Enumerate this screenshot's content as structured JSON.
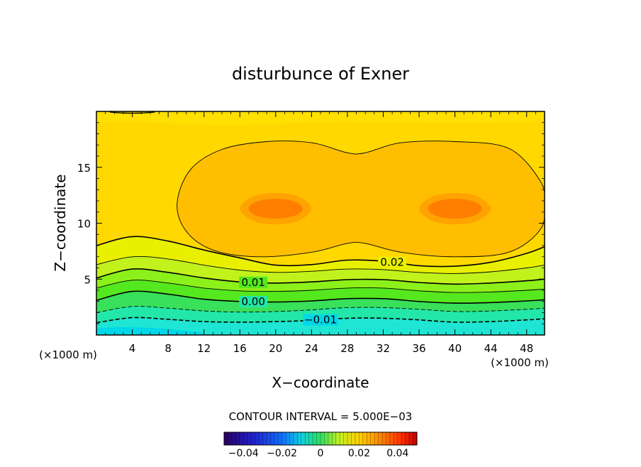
{
  "chart_data": {
    "type": "contour",
    "title": "disturbunce of Exner",
    "xlabel": "X−coordinate",
    "ylabel": "Z−coordinate",
    "x_unit": "(×1000 m)",
    "y_unit": "(×1000 m)",
    "xlim": [
      0,
      50
    ],
    "ylim": [
      0,
      20
    ],
    "x_ticks": [
      4,
      8,
      12,
      16,
      20,
      24,
      28,
      32,
      36,
      40,
      44,
      48
    ],
    "y_ticks": [
      5,
      10,
      15
    ],
    "contour_interval_text": "CONTOUR INTERVAL = 5.000E−03",
    "contour_interval": 0.005,
    "fill_levels": [
      -0.015,
      -0.01,
      -0.005,
      0.0,
      0.005,
      0.01,
      0.015,
      0.02,
      0.025,
      0.03
    ],
    "field_peak_max": {
      "value": 0.03,
      "locations": [
        [
          20,
          11.3
        ],
        [
          40,
          11.3
        ]
      ]
    },
    "field_min": {
      "value": -0.015,
      "location": [
        4,
        0.2
      ]
    },
    "contour_lines": [
      {
        "level": -0.01,
        "label": "−0.01",
        "label_x": 25,
        "points": [
          [
            0,
            1.1
          ],
          [
            4,
            1.55
          ],
          [
            8,
            1.4
          ],
          [
            12,
            1.2
          ],
          [
            16,
            1.15
          ],
          [
            20,
            1.2
          ],
          [
            24,
            1.3
          ],
          [
            28,
            1.5
          ],
          [
            32,
            1.5
          ],
          [
            36,
            1.35
          ],
          [
            40,
            1.15
          ],
          [
            44,
            1.2
          ],
          [
            48,
            1.35
          ],
          [
            50,
            1.45
          ]
        ]
      },
      {
        "level": -0.005,
        "label": "",
        "points": [
          [
            0,
            2.0
          ],
          [
            4,
            2.55
          ],
          [
            8,
            2.4
          ],
          [
            12,
            2.15
          ],
          [
            16,
            2.05
          ],
          [
            20,
            2.1
          ],
          [
            24,
            2.25
          ],
          [
            28,
            2.45
          ],
          [
            32,
            2.45
          ],
          [
            36,
            2.3
          ],
          [
            40,
            2.1
          ],
          [
            44,
            2.15
          ],
          [
            48,
            2.3
          ],
          [
            50,
            2.4
          ]
        ]
      },
      {
        "level": 0.0,
        "label": "0.00",
        "label_x": 17.5,
        "points": [
          [
            0,
            3.1
          ],
          [
            4,
            3.9
          ],
          [
            8,
            3.65
          ],
          [
            12,
            3.2
          ],
          [
            16,
            3.0
          ],
          [
            20,
            2.95
          ],
          [
            24,
            3.05
          ],
          [
            28,
            3.25
          ],
          [
            32,
            3.25
          ],
          [
            36,
            3.0
          ],
          [
            40,
            2.85
          ],
          [
            44,
            2.9
          ],
          [
            48,
            3.05
          ],
          [
            50,
            3.15
          ]
        ]
      },
      {
        "level": 0.005,
        "label": "",
        "points": [
          [
            0,
            4.2
          ],
          [
            4,
            4.9
          ],
          [
            8,
            4.65
          ],
          [
            12,
            4.2
          ],
          [
            16,
            3.95
          ],
          [
            20,
            3.9
          ],
          [
            24,
            4.0
          ],
          [
            28,
            4.2
          ],
          [
            32,
            4.2
          ],
          [
            36,
            3.95
          ],
          [
            40,
            3.8
          ],
          [
            44,
            3.85
          ],
          [
            48,
            4.0
          ],
          [
            50,
            4.1
          ]
        ]
      },
      {
        "level": 0.01,
        "label": "0.01",
        "label_x": 17.5,
        "points": [
          [
            0,
            5.1
          ],
          [
            4,
            5.9
          ],
          [
            8,
            5.6
          ],
          [
            12,
            5.1
          ],
          [
            16,
            4.75
          ],
          [
            20,
            4.65
          ],
          [
            24,
            4.75
          ],
          [
            28,
            4.95
          ],
          [
            32,
            4.95
          ],
          [
            36,
            4.7
          ],
          [
            40,
            4.55
          ],
          [
            44,
            4.65
          ],
          [
            48,
            4.85
          ],
          [
            50,
            5.0
          ]
        ]
      },
      {
        "level": 0.015,
        "label": "",
        "points": [
          [
            0,
            6.3
          ],
          [
            4,
            7.0
          ],
          [
            8,
            6.8
          ],
          [
            12,
            6.25
          ],
          [
            16,
            5.8
          ],
          [
            20,
            5.6
          ],
          [
            24,
            5.7
          ],
          [
            28,
            5.9
          ],
          [
            32,
            5.85
          ],
          [
            36,
            5.6
          ],
          [
            40,
            5.5
          ],
          [
            44,
            5.65
          ],
          [
            48,
            6.0
          ],
          [
            50,
            6.25
          ]
        ]
      },
      {
        "level": 0.02,
        "label": "0.02",
        "label_x": 33,
        "points": [
          [
            0,
            8.0
          ],
          [
            4,
            8.8
          ],
          [
            8,
            8.4
          ],
          [
            12,
            7.6
          ],
          [
            16,
            6.9
          ],
          [
            20,
            6.25
          ],
          [
            24,
            6.3
          ],
          [
            28,
            6.7
          ],
          [
            32,
            6.6
          ],
          [
            36,
            6.2
          ],
          [
            40,
            6.15
          ],
          [
            44,
            6.5
          ],
          [
            48,
            7.3
          ],
          [
            50,
            7.9
          ]
        ]
      }
    ],
    "closed_contours": [
      {
        "level": 0.025,
        "label": "",
        "points": [
          [
            9,
            11.8
          ],
          [
            10.5,
            14.8
          ],
          [
            14,
            16.6
          ],
          [
            19,
            17.3
          ],
          [
            24,
            17.2
          ],
          [
            28,
            16.3
          ],
          [
            30,
            16.3
          ],
          [
            34,
            17.2
          ],
          [
            40,
            17.3
          ],
          [
            46,
            16.7
          ],
          [
            49.5,
            13.8
          ],
          [
            50,
            11.7
          ],
          [
            49.5,
            9.4
          ],
          [
            46,
            7.4
          ],
          [
            40,
            7.0
          ],
          [
            34,
            7.4
          ],
          [
            30,
            8.2
          ],
          [
            28,
            8.2
          ],
          [
            24,
            7.4
          ],
          [
            18,
            7.0
          ],
          [
            13,
            7.6
          ],
          [
            10,
            9.3
          ]
        ]
      },
      {
        "level": 0.03,
        "label": "",
        "points": [
          [
            16,
            11.3
          ],
          [
            17.5,
            12.4
          ],
          [
            20,
            12.7
          ],
          [
            22.5,
            12.4
          ],
          [
            24,
            11.3
          ],
          [
            22.5,
            10.2
          ],
          [
            20,
            9.9
          ],
          [
            17.5,
            10.2
          ]
        ]
      },
      {
        "level": 0.03,
        "label": "",
        "points": [
          [
            36,
            11.3
          ],
          [
            37.5,
            12.4
          ],
          [
            40,
            12.7
          ],
          [
            42.5,
            12.4
          ],
          [
            44,
            11.3
          ],
          [
            42.5,
            10.2
          ],
          [
            40,
            9.9
          ],
          [
            37.5,
            10.2
          ]
        ]
      }
    ],
    "colorbar": {
      "min": -0.05,
      "max": 0.05,
      "ticks": [
        -0.04,
        -0.02,
        0,
        0.02,
        0.04
      ],
      "tick_labels": [
        "−0.04",
        "−0.02",
        "0",
        "0.02",
        "0.04"
      ]
    },
    "colors": {
      "below_-0.015": "#00d8e8",
      "-0.015_-0.01": "#1ee6d2",
      "-0.01_-0.005": "#22e7a8",
      "-0.005_0": "#39e05a",
      "0_0.005": "#55e81e",
      "0.005_0.01": "#8cf01a",
      "0.01_0.015": "#c2f21c",
      "0.015_0.02": "#e8f000",
      "0.02_0.025": "#ffd800",
      "0.025_0.03": "#ffbf00",
      "0.03_0.035": "#ff9f10",
      "above_0.035": "#ff7a00"
    }
  }
}
